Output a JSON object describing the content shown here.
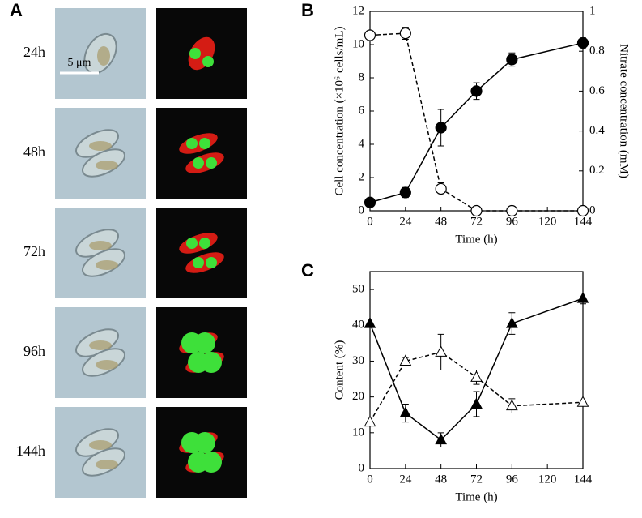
{
  "panel_a": {
    "label": "A",
    "rows": [
      "24h",
      "48h",
      "72h",
      "96h",
      "144h"
    ],
    "scale_bar": "5 μm"
  },
  "chart_data": [
    {
      "type": "line",
      "label": "B",
      "x_label": "Time (h)",
      "y_label": "Cell concentration (×10⁶ cells/mL)",
      "y2_label": "Nitrate concentration (mM)",
      "xlim": [
        0,
        144
      ],
      "xticks": [
        0,
        24,
        48,
        72,
        96,
        120,
        144
      ],
      "ylim": [
        0,
        12
      ],
      "yticks": [
        0,
        2,
        4,
        6,
        8,
        10,
        12
      ],
      "y2lim": [
        0,
        1
      ],
      "y2ticks": [
        0,
        0.2,
        0.4,
        0.6,
        0.8,
        1
      ],
      "series": [
        {
          "color": "#000000",
          "marker": "circle",
          "filled": true,
          "dashed": false,
          "x": [
            0,
            24,
            48,
            72,
            96,
            144
          ],
          "values": [
            0.5,
            1.1,
            5.0,
            7.2,
            9.1,
            10.1
          ],
          "errors": [
            0.1,
            0.3,
            1.1,
            0.5,
            0.4,
            0.3
          ]
        },
        {
          "color": "#000000",
          "marker": "circle",
          "filled": false,
          "dashed": true,
          "axis": "y2",
          "x": [
            0,
            24,
            48,
            72,
            96,
            144
          ],
          "values": [
            0.88,
            0.89,
            0.11,
            0,
            0,
            0
          ],
          "errors": [
            0,
            0.03,
            0.03,
            0,
            0,
            0
          ]
        }
      ]
    },
    {
      "type": "line",
      "label": "C",
      "x_label": "Time (h)",
      "y_label": "Content (%)",
      "xlim": [
        0,
        144
      ],
      "xticks": [
        0,
        24,
        48,
        72,
        96,
        120,
        144
      ],
      "ylim": [
        0,
        55
      ],
      "yticks": [
        0,
        10,
        20,
        30,
        40,
        50
      ],
      "series": [
        {
          "color": "#000000",
          "marker": "triangle",
          "filled": true,
          "dashed": false,
          "x": [
            0,
            24,
            48,
            72,
            96,
            144
          ],
          "values": [
            40.5,
            15.5,
            8,
            18,
            40.5,
            47.5
          ],
          "errors": [
            0,
            2.5,
            2,
            3.5,
            3,
            1.5
          ]
        },
        {
          "color": "#000000",
          "marker": "triangle",
          "filled": false,
          "dashed": true,
          "x": [
            0,
            24,
            48,
            72,
            96,
            144
          ],
          "values": [
            13,
            30,
            32.5,
            25.5,
            17.5,
            18.5
          ],
          "errors": [
            0,
            1,
            5,
            2,
            2,
            0
          ]
        }
      ]
    }
  ]
}
